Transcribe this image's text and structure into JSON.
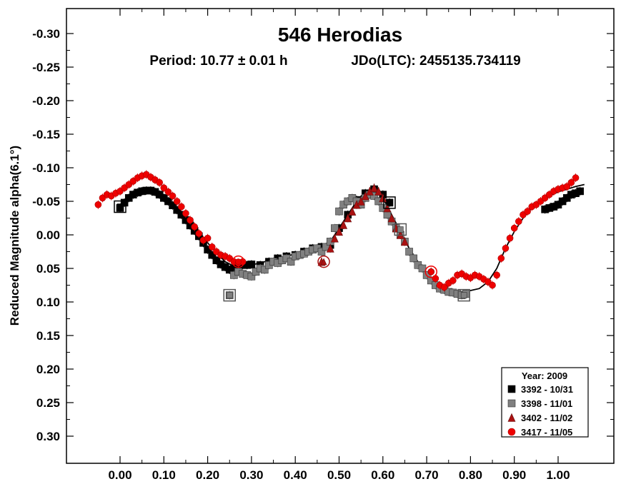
{
  "chart_data": {
    "type": "scatter",
    "title": "546 Herodias",
    "subtitle_period": "Period: 10.77 ± 0.01 h",
    "subtitle_epoch": "JDo(LTC): 2455135.734119",
    "xlabel": "",
    "ylabel": "Reduced Magnitude alpha(6.1°)",
    "xlim": [
      -0.1,
      1.12
    ],
    "ylim": [
      0.35,
      -0.35
    ],
    "y_inverted": true,
    "x_ticks": [
      0.0,
      0.1,
      0.2,
      0.3,
      0.4,
      0.5,
      0.6,
      0.7,
      0.8,
      0.9,
      1.0
    ],
    "x_tick_labels": [
      "0.00",
      "0.10",
      "0.20",
      "0.30",
      "0.40",
      "0.50",
      "0.60",
      "0.70",
      "0.80",
      "0.90",
      "1.00"
    ],
    "y_ticks": [
      -0.3,
      -0.25,
      -0.2,
      -0.15,
      -0.1,
      -0.05,
      0.0,
      0.05,
      0.1,
      0.15,
      0.2,
      0.25,
      0.3
    ],
    "y_tick_labels": [
      "-0.30",
      "-0.25",
      "-0.20",
      "-0.15",
      "-0.10",
      "-0.05",
      "0.00",
      "0.05",
      "0.10",
      "0.15",
      "0.20",
      "0.25",
      "0.30"
    ],
    "grid": false,
    "legend_title": "Year: 2009",
    "legend_position": "bottom-right",
    "fit_curve": {
      "x": [
        0.0,
        0.03,
        0.06,
        0.09,
        0.12,
        0.15,
        0.18,
        0.21,
        0.24,
        0.27,
        0.3,
        0.33,
        0.36,
        0.39,
        0.42,
        0.45,
        0.48,
        0.5,
        0.52,
        0.54,
        0.56,
        0.58,
        0.6,
        0.62,
        0.64,
        0.66,
        0.68,
        0.7,
        0.72,
        0.74,
        0.76,
        0.78,
        0.8,
        0.82,
        0.84,
        0.86,
        0.88,
        0.9,
        0.92,
        0.94,
        0.96,
        0.98,
        1.0,
        1.02,
        1.04,
        1.06
      ],
      "y": [
        -0.045,
        -0.062,
        -0.068,
        -0.06,
        -0.045,
        -0.025,
        -0.005,
        0.02,
        0.04,
        0.05,
        0.045,
        0.04,
        0.035,
        0.03,
        0.025,
        0.02,
        0.01,
        -0.01,
        -0.03,
        -0.05,
        -0.065,
        -0.068,
        -0.055,
        -0.03,
        -0.005,
        0.02,
        0.04,
        0.06,
        0.075,
        0.082,
        0.085,
        0.085,
        0.083,
        0.08,
        0.07,
        0.05,
        0.02,
        -0.005,
        -0.025,
        -0.04,
        -0.05,
        -0.058,
        -0.064,
        -0.068,
        -0.072,
        -0.075
      ]
    },
    "series": [
      {
        "name": "3392 - 10/31",
        "marker": "square",
        "color": "#000000",
        "x": [
          0.0,
          0.01,
          0.02,
          0.03,
          0.04,
          0.05,
          0.06,
          0.07,
          0.08,
          0.09,
          0.1,
          0.11,
          0.12,
          0.13,
          0.14,
          0.15,
          0.16,
          0.17,
          0.18,
          0.19,
          0.2,
          0.21,
          0.22,
          0.23,
          0.24,
          0.25,
          0.26,
          0.27,
          0.28,
          0.29,
          0.3,
          0.32,
          0.34,
          0.36,
          0.38,
          0.4,
          0.42,
          0.44,
          0.46,
          0.48,
          0.5,
          0.52,
          0.54,
          0.56,
          0.58,
          0.6,
          0.615,
          0.97,
          0.98,
          0.99,
          1.0,
          1.01,
          1.02,
          1.03,
          1.04,
          1.05
        ],
        "y": [
          -0.04,
          -0.048,
          -0.055,
          -0.06,
          -0.063,
          -0.065,
          -0.066,
          -0.066,
          -0.064,
          -0.06,
          -0.055,
          -0.05,
          -0.044,
          -0.037,
          -0.03,
          -0.022,
          -0.014,
          -0.006,
          0.002,
          0.012,
          0.022,
          0.03,
          0.038,
          0.044,
          0.048,
          0.052,
          0.05,
          0.046,
          0.045,
          0.045,
          0.044,
          0.045,
          0.04,
          0.035,
          0.032,
          0.03,
          0.025,
          0.02,
          0.018,
          0.015,
          -0.01,
          -0.03,
          -0.052,
          -0.062,
          -0.068,
          -0.06,
          -0.048,
          -0.038,
          -0.04,
          -0.042,
          -0.045,
          -0.05,
          -0.055,
          -0.06,
          -0.062,
          -0.065
        ]
      },
      {
        "name": "3398 - 11/01",
        "marker": "square",
        "color": "#808080",
        "x": [
          0.25,
          0.26,
          0.27,
          0.28,
          0.29,
          0.3,
          0.31,
          0.32,
          0.33,
          0.34,
          0.35,
          0.36,
          0.37,
          0.38,
          0.39,
          0.4,
          0.41,
          0.42,
          0.43,
          0.44,
          0.45,
          0.46,
          0.47,
          0.48,
          0.49,
          0.5,
          0.51,
          0.52,
          0.53,
          0.54,
          0.55,
          0.56,
          0.57,
          0.58,
          0.59,
          0.6,
          0.61,
          0.62,
          0.63,
          0.64,
          0.65,
          0.66,
          0.67,
          0.68,
          0.69,
          0.7,
          0.71,
          0.72,
          0.73,
          0.74,
          0.75,
          0.76,
          0.77,
          0.78,
          0.79
        ],
        "y": [
          0.09,
          0.06,
          0.055,
          0.058,
          0.06,
          0.062,
          0.055,
          0.05,
          0.052,
          0.045,
          0.04,
          0.042,
          0.038,
          0.035,
          0.04,
          0.032,
          0.03,
          0.028,
          0.025,
          0.022,
          0.02,
          0.025,
          0.018,
          0.01,
          -0.01,
          -0.035,
          -0.045,
          -0.05,
          -0.055,
          -0.05,
          -0.045,
          -0.055,
          -0.06,
          -0.058,
          -0.05,
          -0.04,
          -0.03,
          -0.02,
          -0.01,
          0.0,
          0.01,
          0.025,
          0.035,
          0.045,
          0.05,
          0.06,
          0.068,
          0.075,
          0.08,
          0.082,
          0.085,
          0.086,
          0.088,
          0.09,
          0.088
        ]
      },
      {
        "name": "3402 - 11/02",
        "marker": "triangle",
        "color": "#aa1111",
        "x": [
          0.46,
          0.48,
          0.49,
          0.5,
          0.51,
          0.52,
          0.53,
          0.54,
          0.55,
          0.56,
          0.57,
          0.58,
          0.59,
          0.6,
          0.61,
          0.62,
          0.63,
          0.64,
          0.65
        ],
        "y": [
          0.04,
          0.02,
          0.005,
          -0.005,
          -0.015,
          -0.025,
          -0.035,
          -0.045,
          -0.05,
          -0.058,
          -0.065,
          -0.07,
          -0.065,
          -0.055,
          -0.04,
          -0.025,
          -0.01,
          0.0,
          0.01
        ]
      },
      {
        "name": "3417 - 11/05",
        "marker": "circle",
        "color": "#ee0000",
        "x": [
          -0.05,
          -0.04,
          -0.03,
          -0.02,
          -0.01,
          0.0,
          0.01,
          0.02,
          0.03,
          0.04,
          0.05,
          0.06,
          0.07,
          0.08,
          0.09,
          0.1,
          0.11,
          0.12,
          0.13,
          0.14,
          0.15,
          0.16,
          0.17,
          0.18,
          0.19,
          0.2,
          0.21,
          0.22,
          0.23,
          0.24,
          0.25,
          0.26,
          0.27,
          0.28,
          0.71,
          0.72,
          0.73,
          0.74,
          0.75,
          0.76,
          0.77,
          0.78,
          0.79,
          0.8,
          0.81,
          0.82,
          0.83,
          0.84,
          0.85,
          0.86,
          0.87,
          0.88,
          0.89,
          0.9,
          0.91,
          0.92,
          0.93,
          0.94,
          0.95,
          0.96,
          0.97,
          0.98,
          0.99,
          1.0,
          1.01,
          1.02,
          1.03,
          1.04
        ],
        "y": [
          -0.045,
          -0.055,
          -0.06,
          -0.058,
          -0.062,
          -0.065,
          -0.07,
          -0.075,
          -0.08,
          -0.085,
          -0.088,
          -0.09,
          -0.086,
          -0.082,
          -0.078,
          -0.07,
          -0.064,
          -0.058,
          -0.05,
          -0.042,
          -0.032,
          -0.022,
          -0.012,
          -0.002,
          0.008,
          0.005,
          0.018,
          0.025,
          0.03,
          0.032,
          0.035,
          0.04,
          0.042,
          0.04,
          0.055,
          0.065,
          0.075,
          0.078,
          0.072,
          0.068,
          0.06,
          0.058,
          0.062,
          0.064,
          0.06,
          0.062,
          0.066,
          0.07,
          0.075,
          0.06,
          0.035,
          0.02,
          0.005,
          -0.01,
          -0.02,
          -0.03,
          -0.035,
          -0.042,
          -0.045,
          -0.05,
          -0.055,
          -0.06,
          -0.065,
          -0.068,
          -0.07,
          -0.072,
          -0.078,
          -0.085
        ]
      }
    ],
    "highlight_markers": [
      {
        "series": 0,
        "x": 0.0,
        "y": -0.042
      },
      {
        "series": 0,
        "x": 0.615,
        "y": -0.048
      },
      {
        "series": 1,
        "x": 0.25,
        "y": 0.09
      },
      {
        "series": 1,
        "x": 0.64,
        "y": -0.008
      },
      {
        "series": 1,
        "x": 0.785,
        "y": 0.09
      },
      {
        "series": 2,
        "x": 0.465,
        "y": 0.04
      },
      {
        "series": 3,
        "x": 0.27,
        "y": 0.04
      },
      {
        "series": 3,
        "x": 0.71,
        "y": 0.055
      }
    ]
  }
}
